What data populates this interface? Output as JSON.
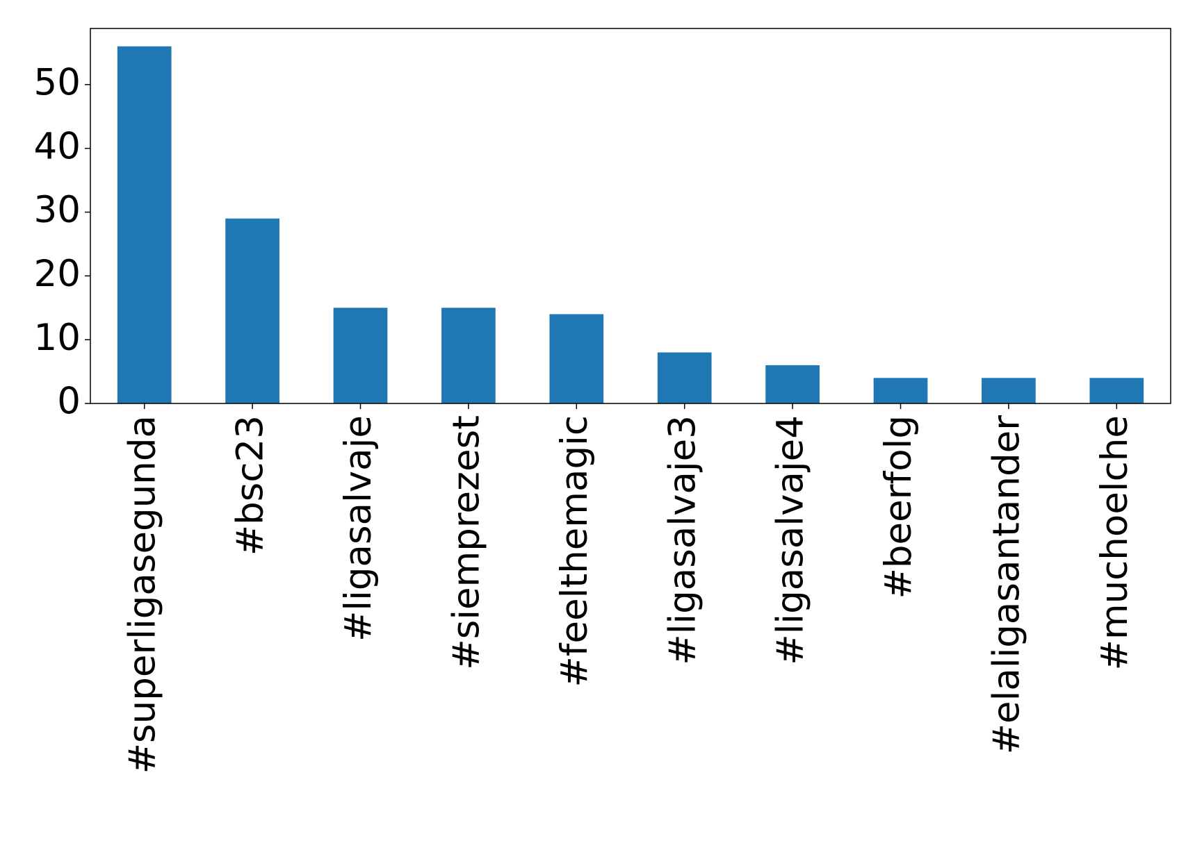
{
  "chart_data": {
    "type": "bar",
    "categories": [
      "#superligasegunda",
      "#bsc23",
      "#ligasalvaje",
      "#siemprezest",
      "#feelthemagic",
      "#ligasalvaje3",
      "#ligasalvaje4",
      "#beerfolg",
      "#elaligasantander",
      "#muchoelche"
    ],
    "values": [
      56,
      29,
      15,
      15,
      14,
      8,
      6,
      4,
      4,
      4
    ],
    "color": "#1f77b4",
    "ylim": [
      0,
      58.8
    ],
    "yticks": [
      0,
      10,
      20,
      30,
      40,
      50
    ],
    "grid": false
  }
}
